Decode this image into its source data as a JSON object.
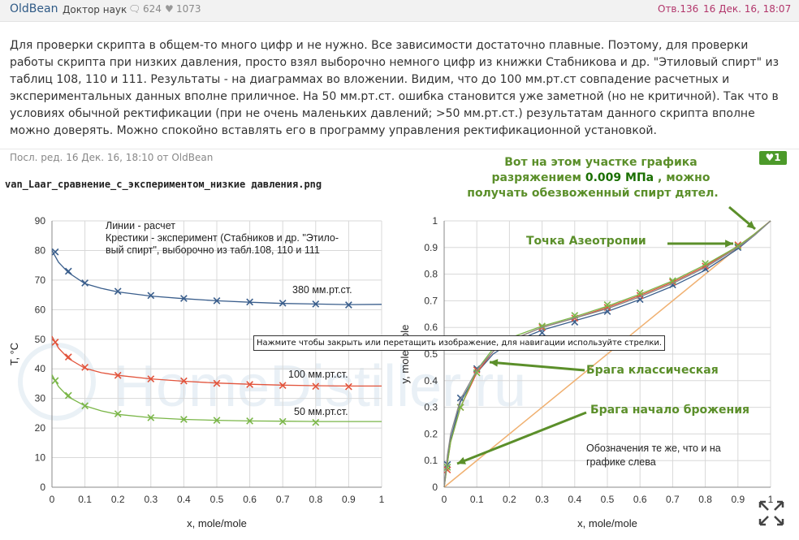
{
  "post": {
    "author": "OldBean",
    "rank": "Доктор наук",
    "comments": "624",
    "likes": "1073",
    "reply_no": "Отв.136",
    "date": "16 Дек. 16, 18:07",
    "text": "Для проверки скрипта в общем-то много цифр и не нужно. Все зависимости достаточно плавные. Поэтому, для проверки работы скрипта при низких давления, просто взял выборочно немного цифр из книжки Стабникова и др. \"Этиловый спирт\" из таблиц 108, 110 и 111. Результаты - на диаграммах во вложении. Видим, что до 100 мм.рт.ст совпадение расчетных и экспериментальных данных вполне приличное. На 50 мм.рт.ст. ошибка становится уже заметной (но не критичной). Так что в условиях обычной ректификации (при не очень маленьких давлений; >50 мм.рт.ст.) результатам данного скрипта вполне можно доверять. Можно спокойно вставлять его в программу управления ректификационной установкой.",
    "edited": "Посл. ред. 16 Дек. 16, 18:10 от OldBean",
    "like_count": "1"
  },
  "attachment": {
    "filename": "van_Laar_сравнение_с_экспериментом_низкие давления.png",
    "tooltip": "Нажмите чтобы закрыть или перетащить изображение, для навигации используйте стрелки.",
    "watermark": "HomeDistiller.ru",
    "annotations": {
      "top_line1": "Вот на этом участке графика",
      "top_line2a": "разряжением",
      "top_line2b": "0.009 МПа",
      "top_line2c": ", можно",
      "top_line3": "получать обезвоженный спирт дятел.",
      "azeotrope": "Точка Азеотропии",
      "braga_classic": "Брага классическая",
      "braga_start": "Брага начало брожения"
    },
    "colors": {
      "accent_green": "#5b8f2a",
      "blue": "#3a5e8c",
      "red": "#e2543c",
      "green": "#7ab648",
      "orange": "#f0b070"
    }
  },
  "chart_data": [
    {
      "type": "line",
      "xlabel": "x, mole/mole",
      "ylabel": "T, °C",
      "xlim": [
        0,
        1
      ],
      "ylim": [
        0,
        90
      ],
      "xticks": [
        "0",
        "0.1",
        "0.2",
        "0.3",
        "0.4",
        "0.5",
        "0.6",
        "0.7",
        "0.8",
        "0.9",
        "1"
      ],
      "yticks": [
        "0",
        "10",
        "20",
        "30",
        "40",
        "50",
        "60",
        "70",
        "80",
        "90"
      ],
      "grid": true,
      "legend_lines": [
        "Линии - расчет",
        "Крестики - эксперимент (Стабников и др. \"Этило-",
        "вый спирт\", выборочно из табл.108, 110 и 111"
      ],
      "series": [
        {
          "name": "380 мм.рт.ст.",
          "color": "#3a5e8c",
          "line_x": [
            0,
            0.02,
            0.05,
            0.1,
            0.15,
            0.2,
            0.3,
            0.4,
            0.5,
            0.6,
            0.7,
            0.8,
            0.9,
            1.0
          ],
          "line_y": [
            80,
            76,
            72.5,
            68.8,
            67.2,
            66,
            64.6,
            63.7,
            63,
            62.5,
            62.1,
            61.9,
            61.7,
            61.8
          ],
          "points_x": [
            0.01,
            0.05,
            0.1,
            0.2,
            0.3,
            0.4,
            0.5,
            0.6,
            0.7,
            0.8,
            0.9
          ],
          "points_y": [
            79.5,
            73,
            69,
            66.2,
            64.8,
            63.8,
            63,
            62.6,
            62.2,
            61.9,
            61.6
          ]
        },
        {
          "name": "100 мм.рт.ст.",
          "color": "#e2543c",
          "line_x": [
            0,
            0.02,
            0.05,
            0.1,
            0.15,
            0.2,
            0.3,
            0.4,
            0.5,
            0.6,
            0.7,
            0.8,
            0.9,
            1.0
          ],
          "line_y": [
            51,
            47,
            43.5,
            40.2,
            38.7,
            37.8,
            36.6,
            35.8,
            35.2,
            34.8,
            34.5,
            34.3,
            34.2,
            34.2
          ],
          "points_x": [
            0.01,
            0.05,
            0.1,
            0.2,
            0.3,
            0.4,
            0.5,
            0.6,
            0.7,
            0.8,
            0.9
          ],
          "points_y": [
            49,
            44,
            40.5,
            37.8,
            36.6,
            35.9,
            35.1,
            34.7,
            34.4,
            34.1,
            34
          ],
          "label_color": "#333"
        },
        {
          "name": "50 мм.рт.ст.",
          "color": "#7ab648",
          "line_x": [
            0,
            0.02,
            0.05,
            0.1,
            0.15,
            0.2,
            0.3,
            0.4,
            0.5,
            0.6,
            0.7,
            0.8,
            0.9,
            1.0
          ],
          "line_y": [
            38,
            34,
            30.5,
            27.5,
            25.8,
            24.6,
            23.5,
            22.9,
            22.6,
            22.4,
            22.3,
            22.2,
            22.2,
            22.2
          ],
          "points_x": [
            0.01,
            0.05,
            0.1,
            0.2,
            0.3,
            0.4,
            0.5,
            0.6,
            0.7,
            0.8
          ],
          "points_y": [
            36,
            31,
            27.5,
            24.8,
            23.5,
            22.9,
            22.6,
            22.4,
            22.2,
            21.9
          ]
        }
      ]
    },
    {
      "type": "line",
      "xlabel": "x, mole/mole",
      "ylabel": "y, mole/mole",
      "xlim": [
        0,
        1
      ],
      "ylim": [
        0,
        1
      ],
      "xticks": [
        "0",
        "0.1",
        "0.2",
        "0.3",
        "0.4",
        "0.5",
        "0.6",
        "0.7",
        "0.8",
        "0.9",
        "1"
      ],
      "yticks": [
        "0",
        "0.1",
        "0.2",
        "0.3",
        "0.4",
        "0.5",
        "0.6",
        "0.7",
        "0.8",
        "0.9",
        "1"
      ],
      "grid": true,
      "note_lines": [
        "Обозначения те же, что и на",
        "графике слева"
      ],
      "diagonal": {
        "x": [
          0,
          1
        ],
        "y": [
          0,
          1
        ],
        "color": "#f0b070"
      },
      "series": [
        {
          "name": "380 мм.рт.ст.",
          "color": "#3a5e8c",
          "line_x": [
            0,
            0.01,
            0.02,
            0.05,
            0.1,
            0.15,
            0.2,
            0.3,
            0.4,
            0.5,
            0.6,
            0.7,
            0.8,
            0.9,
            0.95,
            1.0
          ],
          "line_y": [
            0,
            0.1,
            0.18,
            0.32,
            0.43,
            0.5,
            0.54,
            0.59,
            0.625,
            0.66,
            0.705,
            0.755,
            0.815,
            0.895,
            0.945,
            1.0
          ],
          "points_x": [
            0.01,
            0.05,
            0.1,
            0.3,
            0.4,
            0.5,
            0.6,
            0.7,
            0.8,
            0.9
          ],
          "points_y": [
            0.085,
            0.335,
            0.445,
            0.58,
            0.62,
            0.66,
            0.705,
            0.76,
            0.82,
            0.9
          ]
        },
        {
          "name": "100 мм.рт.ст.",
          "color": "#e2543c",
          "line_x": [
            0,
            0.01,
            0.02,
            0.05,
            0.1,
            0.15,
            0.2,
            0.3,
            0.4,
            0.5,
            0.6,
            0.7,
            0.8,
            0.9,
            0.95,
            1.0
          ],
          "line_y": [
            0,
            0.09,
            0.17,
            0.3,
            0.43,
            0.51,
            0.55,
            0.6,
            0.635,
            0.675,
            0.72,
            0.77,
            0.83,
            0.905,
            0.95,
            1.0
          ],
          "points_x": [
            0.01,
            0.05,
            0.1,
            0.3,
            0.4,
            0.5,
            0.6,
            0.7,
            0.8,
            0.9
          ],
          "points_y": [
            0.065,
            0.3,
            0.44,
            0.6,
            0.635,
            0.675,
            0.72,
            0.77,
            0.83,
            0.91
          ]
        },
        {
          "name": "50 мм.рт.ст.",
          "color": "#7ab648",
          "line_x": [
            0,
            0.01,
            0.02,
            0.05,
            0.1,
            0.15,
            0.2,
            0.3,
            0.4,
            0.5,
            0.6,
            0.7,
            0.8,
            0.9,
            0.95,
            1.0
          ],
          "line_y": [
            0,
            0.09,
            0.17,
            0.3,
            0.44,
            0.52,
            0.56,
            0.605,
            0.64,
            0.68,
            0.725,
            0.775,
            0.835,
            0.905,
            0.95,
            1.0
          ],
          "points_x": [
            0.01,
            0.05,
            0.1,
            0.3,
            0.4,
            0.5,
            0.6,
            0.7,
            0.8,
            0.9
          ],
          "points_y": [
            0.075,
            0.3,
            0.43,
            0.605,
            0.645,
            0.685,
            0.73,
            0.775,
            0.84,
            0.905
          ]
        },
        {
          "name": "",
          "color": "#888",
          "line_x": [
            0,
            0.01,
            0.02,
            0.05,
            0.1,
            0.15,
            0.2,
            0.3,
            0.4,
            0.5,
            0.6,
            0.7,
            0.8,
            0.9,
            0.95,
            1.0
          ],
          "line_y": [
            0,
            0.12,
            0.2,
            0.33,
            0.44,
            0.51,
            0.55,
            0.6,
            0.635,
            0.67,
            0.715,
            0.765,
            0.825,
            0.9,
            0.945,
            1.0
          ],
          "points_x": [],
          "points_y": []
        }
      ]
    }
  ]
}
